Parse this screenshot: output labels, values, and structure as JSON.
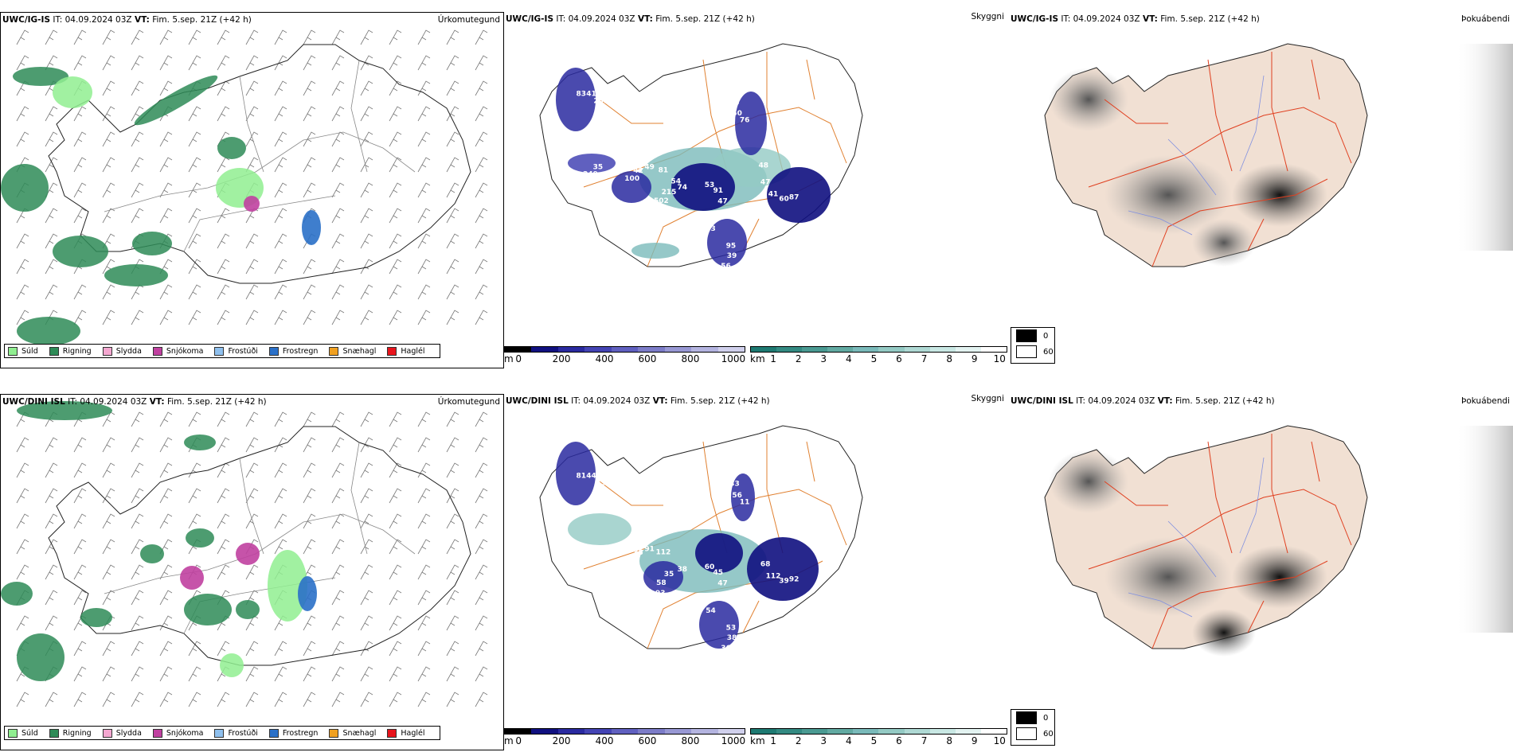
{
  "rows": [
    {
      "model_bold": "UWC/IG-IS",
      "precip": {
        "header_it": "IT: 04.09.2024 03Z",
        "header_vt_bold": "VT:",
        "header_vt": "Fim. 5.sep. 21Z",
        "header_offset": "(+42 h)",
        "title": "Úrkomutegund"
      },
      "cloud": {
        "header_it": "IT: 04.09.2024 03Z",
        "header_vt_bold": "VT:",
        "header_vt": "Fim. 5.sep. 21Z",
        "header_offset": "(+42 h)",
        "title": "Skyggni",
        "labels": [
          "53",
          "87",
          "100",
          "95",
          "76",
          "83",
          "35",
          "81",
          "91",
          "60",
          "42",
          "39",
          "50",
          "41",
          "249",
          "502",
          "47",
          "41",
          "49",
          "56",
          "52",
          "259",
          "234",
          "215",
          "77",
          "47",
          "81",
          "33",
          "51",
          "49",
          "91",
          "74",
          "83",
          "48",
          "54",
          "32"
        ]
      },
      "fog": {
        "header_it": "IT: 04.09.2024 03Z",
        "header_vt_bold": "VT:",
        "header_vt": "Fim. 5.sep. 21Z",
        "header_offset": "(+42 h)",
        "title": "Þokuábendi"
      }
    },
    {
      "model_bold": "UWC/DINI ISL",
      "precip": {
        "header_it": "IT: 04.09.2024 03Z",
        "header_vt_bold": "VT:",
        "header_vt": "Fim. 5.sep. 21Z",
        "header_offset": "(+42 h)",
        "title": "Úrkomutegund"
      },
      "cloud": {
        "header_it": "IT: 04.09.2024 03Z",
        "header_vt_bold": "VT:",
        "header_vt": "Fim. 5.sep. 21Z",
        "header_offset": "(+42 h)",
        "title": "Skyggni",
        "labels": [
          "60",
          "92",
          "39",
          "53",
          "11",
          "81",
          "21",
          "93",
          "45",
          "39",
          "35",
          "38",
          "56",
          "44",
          "80",
          "58",
          "47",
          "112",
          "91",
          "36",
          "33",
          "55",
          "51",
          "35",
          "27",
          "68",
          "112",
          "57",
          "58",
          "74",
          "45",
          "38",
          "54"
        ]
      },
      "fog": {
        "header_it": "IT: 04.09.2024 03Z",
        "header_vt_bold": "VT:",
        "header_vt": "Fim. 5.sep. 21Z",
        "header_offset": "(+42 h)",
        "title": "Þokuábendi"
      }
    }
  ],
  "precip_legend": [
    {
      "label": "Súld",
      "color": "#90ee90"
    },
    {
      "label": "Rigning",
      "color": "#2e8b57"
    },
    {
      "label": "Slydda",
      "color": "#f4a7d0"
    },
    {
      "label": "Snjókoma",
      "color": "#c040a0"
    },
    {
      "label": "Frostúði",
      "color": "#8fc0ee"
    },
    {
      "label": "Frostregn",
      "color": "#2a70c8"
    },
    {
      "label": "Snæhagl",
      "color": "#f0a020"
    },
    {
      "label": "Haglél",
      "color": "#e8141c"
    }
  ],
  "ceiling_bar": {
    "unit": "m",
    "ticks": [
      "0",
      "200",
      "400",
      "600",
      "800",
      "1000"
    ],
    "colors": [
      "#000000",
      "#101080",
      "#2a2aa0",
      "#4444b4",
      "#6060c0",
      "#7c7cc8",
      "#9898d4",
      "#b4b4e0",
      "#d0d0ec"
    ]
  },
  "visibility_bar": {
    "unit": "km",
    "ticks": [
      "1",
      "2",
      "3",
      "4",
      "5",
      "6",
      "7",
      "8",
      "9",
      "10"
    ],
    "colors": [
      "#1e7a72",
      "#338a82",
      "#4a9a92",
      "#62aaa2",
      "#7ababa",
      "#94cac4",
      "#afd9d4",
      "#c9e8e4",
      "#e3f3f1",
      "#ffffff"
    ]
  },
  "fog_legend": [
    {
      "label": "0",
      "color": "#000000"
    },
    {
      "label": "60",
      "color": "#ffffff"
    }
  ]
}
